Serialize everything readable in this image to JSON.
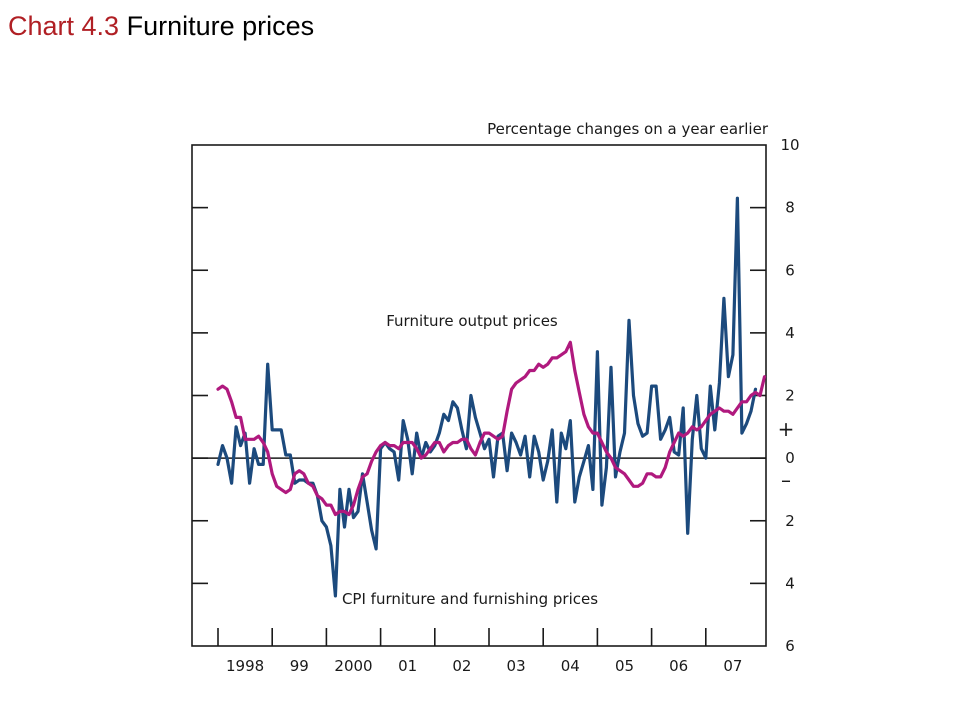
{
  "page": {
    "title_number": "Chart 4.3",
    "title_text": "Furniture prices"
  },
  "chart_data": {
    "type": "line",
    "title": "Chart 4.3 Furniture prices",
    "units_label": "Percentage changes on a year earlier",
    "ylim": [
      -6,
      10
    ],
    "y_ticks": [
      -6,
      -4,
      -2,
      0,
      2,
      4,
      6,
      8,
      10
    ],
    "y_tick_labels": [
      "6",
      "4",
      "2",
      "0",
      "2",
      "4",
      "6",
      "8",
      "10"
    ],
    "sign_labels": {
      "plus": "+",
      "minus": "–"
    },
    "x_start": 1998.0,
    "x_ticks": [
      1998,
      1999,
      2000,
      2001,
      2002,
      2003,
      2004,
      2005,
      2006,
      2007
    ],
    "x_tick_labels": [
      "1998",
      "99",
      "2000",
      "01",
      "02",
      "03",
      "04",
      "05",
      "06",
      "07"
    ],
    "grid": false,
    "series": [
      {
        "name": "CPI furniture and furnishing prices",
        "color": "#1c4a7d",
        "values": [
          -0.2,
          0.4,
          0.0,
          -0.8,
          1.0,
          0.4,
          0.8,
          -0.8,
          0.3,
          -0.2,
          -0.2,
          3.0,
          0.9,
          0.9,
          0.9,
          0.1,
          0.1,
          -0.8,
          -0.7,
          -0.7,
          -0.8,
          -0.8,
          -1.2,
          -2.0,
          -2.2,
          -2.8,
          -4.4,
          -1.0,
          -2.2,
          -1.0,
          -1.9,
          -1.7,
          -0.5,
          -1.4,
          -2.3,
          -2.9,
          0.3,
          0.5,
          0.3,
          0.2,
          -0.7,
          1.2,
          0.6,
          -0.5,
          0.8,
          0.0,
          0.5,
          0.2,
          0.4,
          0.8,
          1.4,
          1.2,
          1.8,
          1.6,
          0.9,
          0.3,
          2.0,
          1.3,
          0.8,
          0.3,
          0.6,
          -0.6,
          0.7,
          0.8,
          -0.4,
          0.8,
          0.5,
          0.1,
          0.7,
          -0.6,
          0.7,
          0.2,
          -0.7,
          -0.1,
          0.9,
          -1.4,
          0.8,
          0.3,
          1.2,
          -1.4,
          -0.6,
          -0.1,
          0.4,
          -1.0,
          3.4,
          -1.5,
          -0.3,
          2.9,
          -0.6,
          0.2,
          0.8,
          4.4,
          2.0,
          1.1,
          0.7,
          0.8,
          2.3,
          2.3,
          0.6,
          0.9,
          1.3,
          0.2,
          0.1,
          1.6,
          -2.4,
          0.6,
          2.0,
          0.3,
          0.0,
          2.3,
          0.9,
          2.4,
          5.1,
          2.6,
          3.3,
          8.3,
          0.8,
          1.1,
          1.5,
          2.2
        ]
      },
      {
        "name": "Furniture output prices",
        "color": "#b0197e",
        "values": [
          2.2,
          2.3,
          2.2,
          1.8,
          1.3,
          1.3,
          0.6,
          0.6,
          0.6,
          0.7,
          0.5,
          0.2,
          -0.5,
          -0.9,
          -1.0,
          -1.1,
          -1.0,
          -0.5,
          -0.4,
          -0.5,
          -0.8,
          -0.9,
          -1.2,
          -1.3,
          -1.5,
          -1.5,
          -1.8,
          -1.7,
          -1.7,
          -1.8,
          -1.5,
          -1.0,
          -0.6,
          -0.5,
          -0.1,
          0.2,
          0.4,
          0.5,
          0.4,
          0.4,
          0.3,
          0.5,
          0.5,
          0.5,
          0.3,
          0.0,
          0.1,
          0.3,
          0.5,
          0.5,
          0.2,
          0.4,
          0.5,
          0.5,
          0.6,
          0.6,
          0.3,
          0.1,
          0.5,
          0.8,
          0.8,
          0.7,
          0.6,
          0.7,
          1.5,
          2.2,
          2.4,
          2.5,
          2.6,
          2.8,
          2.8,
          3.0,
          2.9,
          3.0,
          3.2,
          3.2,
          3.3,
          3.4,
          3.7,
          2.8,
          2.1,
          1.4,
          1.0,
          0.8,
          0.8,
          0.5,
          0.2,
          0.0,
          -0.3,
          -0.4,
          -0.5,
          -0.7,
          -0.9,
          -0.9,
          -0.8,
          -0.5,
          -0.5,
          -0.6,
          -0.6,
          -0.3,
          0.2,
          0.5,
          0.8,
          0.7,
          0.8,
          1.0,
          0.9,
          1.0,
          1.2,
          1.4,
          1.5,
          1.6,
          1.5,
          1.5,
          1.4,
          1.6,
          1.8,
          1.8,
          2.0,
          2.1,
          2.0,
          2.6
        ]
      }
    ]
  }
}
